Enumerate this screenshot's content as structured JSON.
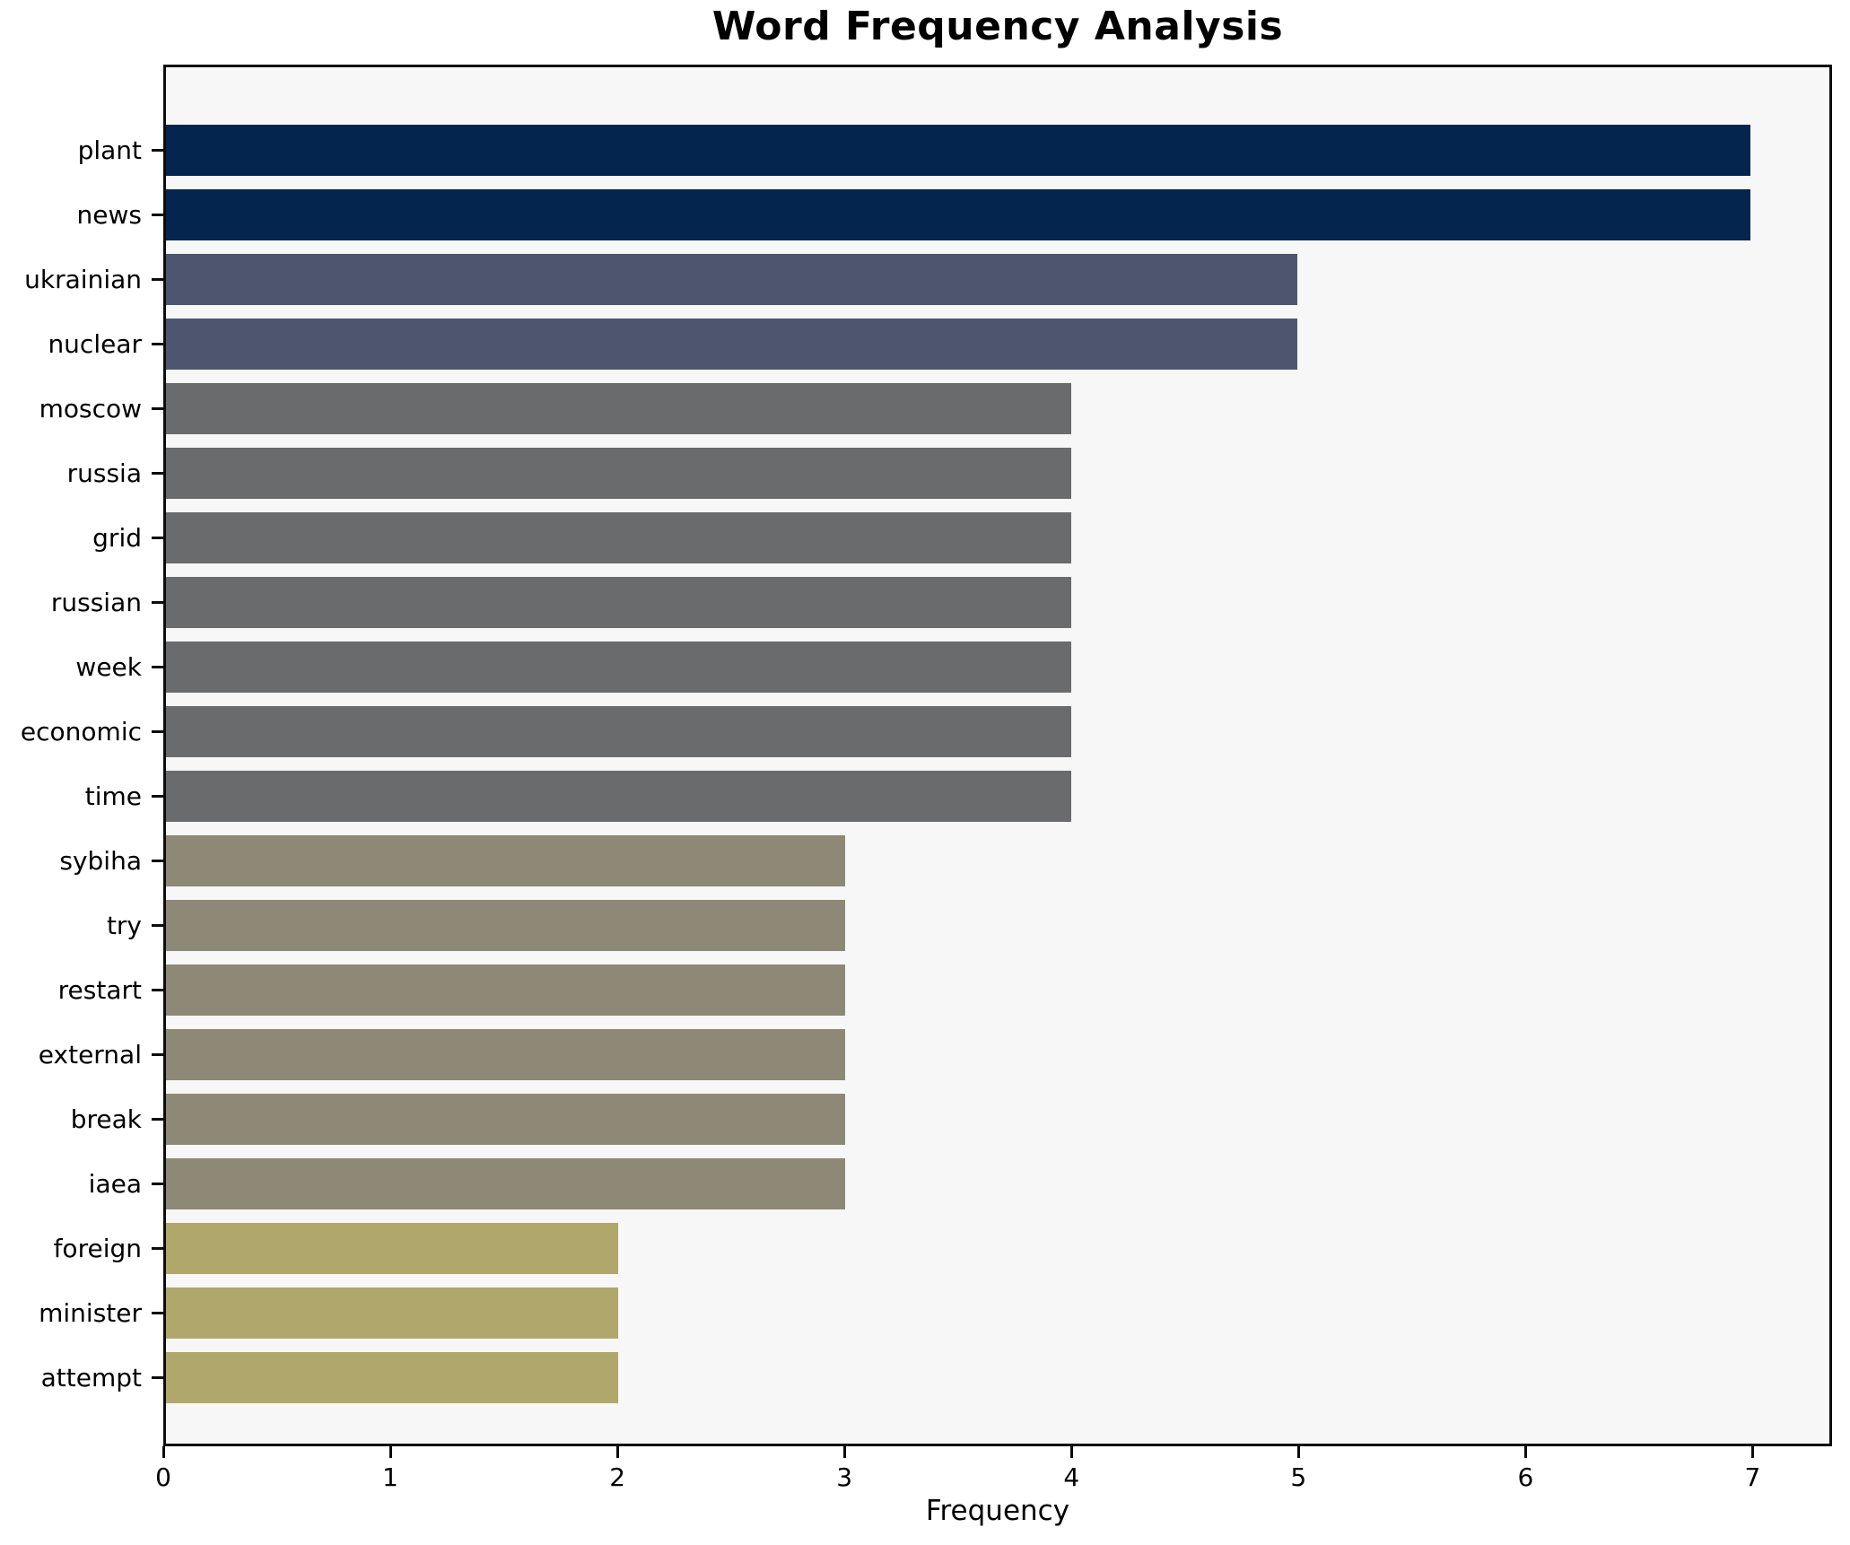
{
  "title": "Word Frequency Analysis",
  "axes": {
    "xlabel": "Frequency",
    "x_tick_labels": [
      "0",
      "1",
      "2",
      "3",
      "4",
      "5",
      "6",
      "7"
    ]
  },
  "chart_data": {
    "type": "bar",
    "orientation": "horizontal",
    "title": "Word Frequency Analysis",
    "xlabel": "Frequency",
    "ylabel": "",
    "categories": [
      "plant",
      "news",
      "ukrainian",
      "nuclear",
      "moscow",
      "russia",
      "grid",
      "russian",
      "week",
      "economic",
      "time",
      "sybiha",
      "try",
      "restart",
      "external",
      "break",
      "iaea",
      "foreign",
      "minister",
      "attempt"
    ],
    "values": [
      7,
      7,
      5,
      5,
      4,
      4,
      4,
      4,
      4,
      4,
      4,
      3,
      3,
      3,
      3,
      3,
      3,
      2,
      2,
      2
    ],
    "xlim": [
      0,
      7.35
    ],
    "x_ticks": [
      0,
      1,
      2,
      3,
      4,
      5,
      6,
      7
    ],
    "grid": false,
    "legend_position": "none",
    "value_colors": {
      "7": "#03254e",
      "5": "#4d566e",
      "4": "#6a6b6d",
      "3": "#8e8876",
      "2": "#b0a76b"
    }
  },
  "style_colors": {
    "figure_background": "#ffffff",
    "plot_background": "#f7f7f8",
    "spine": "#0c0c0c",
    "text": "#000000"
  }
}
